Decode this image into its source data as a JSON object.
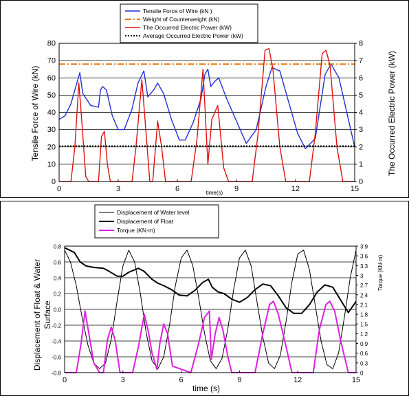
{
  "chart_data": [
    {
      "type": "line",
      "xlabel": "time(s)",
      "ylabel": "Tensile Force of Wire (kN)",
      "y2label": "The Occurred Electric Power (kW)",
      "xlim": [
        0,
        15
      ],
      "ylim": [
        0,
        80
      ],
      "y2lim": [
        0,
        8
      ],
      "x_ticks": [
        0,
        3,
        6,
        9,
        12,
        15
      ],
      "y_ticks": [
        0,
        10,
        20,
        30,
        40,
        50,
        60,
        70,
        80
      ],
      "y2_ticks": [
        0,
        1,
        2,
        3,
        4,
        5,
        6,
        7,
        8
      ],
      "grid": "horizontal",
      "legend_position": "top-center",
      "legend": [
        "Tensile Force of Wire (kN )",
        "Weight of Counterweight (kN)",
        "The Occurred Electric Power (kW)",
        "Average Occurred Electric Power (kW)"
      ],
      "series": [
        {
          "name": "Tensile Force of Wire (kN )",
          "axis": "left",
          "color": "#1f2fd6",
          "style": "solid",
          "x": [
            0,
            0.3,
            0.6,
            0.9,
            1.05,
            1.2,
            1.6,
            2.0,
            2.1,
            2.2,
            2.4,
            2.7,
            3.0,
            3.3,
            3.7,
            4.0,
            4.3,
            4.5,
            4.8,
            5.0,
            5.3,
            5.7,
            6.1,
            6.4,
            6.8,
            7.2,
            7.4,
            7.55,
            7.7,
            7.9,
            8.1,
            8.5,
            9.0,
            9.5,
            10.0,
            10.5,
            10.8,
            11.2,
            11.6,
            12.1,
            12.5,
            13.0,
            13.5,
            13.8,
            14.2,
            14.6,
            15.0
          ],
          "y": [
            36,
            38,
            45,
            57,
            63,
            51,
            44,
            43,
            53,
            55,
            53,
            38,
            30,
            30,
            42,
            57,
            64,
            49,
            53,
            57,
            51,
            36,
            24,
            24,
            34,
            48,
            62,
            65,
            55,
            58,
            60,
            48,
            35,
            22,
            30,
            55,
            66,
            64,
            48,
            28,
            19,
            25,
            62,
            68,
            60,
            40,
            20
          ]
        },
        {
          "name": "Weight of Counterweight (kN)",
          "axis": "left",
          "color": "#e8780e",
          "style": "dashdot",
          "x": [
            0,
            15
          ],
          "y": [
            68,
            68
          ]
        },
        {
          "name": "The Occurred Electric Power (kW)",
          "axis": "right",
          "color": "#e01010",
          "style": "solid",
          "x": [
            0,
            0.6,
            0.8,
            1.0,
            1.15,
            1.35,
            1.5,
            2.0,
            2.15,
            2.3,
            2.45,
            2.6,
            3.7,
            3.9,
            4.2,
            4.4,
            4.6,
            4.75,
            5.0,
            5.2,
            5.4,
            6.7,
            7.0,
            7.3,
            7.55,
            7.75,
            8.05,
            8.35,
            8.6,
            9.8,
            10.1,
            10.45,
            10.65,
            10.85,
            11.2,
            11.5,
            12.7,
            13.0,
            13.35,
            13.55,
            13.75,
            14.1,
            14.4,
            15.0
          ],
          "y": [
            0,
            0,
            2.0,
            5.7,
            3.5,
            0.3,
            0,
            0,
            2.6,
            2.9,
            1.0,
            0,
            0,
            2.0,
            5.9,
            3.0,
            0,
            0,
            3.5,
            2.0,
            0,
            0,
            2.5,
            6.5,
            1.0,
            3.6,
            4.4,
            0.8,
            0,
            0,
            2.8,
            7.6,
            7.7,
            6.5,
            2.0,
            0,
            0,
            2.8,
            7.4,
            7.6,
            6.7,
            2.0,
            0,
            0
          ]
        },
        {
          "name": "Average Occurred Electric Power (kW)",
          "axis": "right",
          "color": "#000000",
          "style": "dotted",
          "x": [
            0,
            15
          ],
          "y": [
            2.05,
            2.05
          ]
        }
      ]
    },
    {
      "type": "line",
      "xlabel": "time (s)",
      "ylabel": "Displacement of Float & Water Surface",
      "y2label": "Torque (KN·m)",
      "xlim": [
        0,
        15
      ],
      "ylim": [
        -0.8,
        0.8
      ],
      "y2lim": [
        0,
        3.9
      ],
      "x_ticks": [
        0,
        3,
        6,
        9,
        12,
        15
      ],
      "y_ticks": [
        -0.8,
        -0.6,
        -0.4,
        -0.2,
        0.0,
        0.2,
        0.4,
        0.6,
        0.8
      ],
      "y_tick_labels": [
        "-0.8",
        "-0.6",
        "-0.4",
        "-0.2",
        "0.0",
        "0.2",
        "0.4",
        "0.6",
        "0.8"
      ],
      "y2_ticks": [
        0,
        0.3,
        0.6,
        0.9,
        1.2,
        1.5,
        1.8,
        2.1,
        2.4,
        2.7,
        3,
        3.3,
        3.6,
        3.9
      ],
      "grid": "horizontal",
      "legend_position": "top-left",
      "legend": [
        "Displacement of Water level",
        "Displacement of Float",
        "Torque (KN·m)"
      ],
      "series": [
        {
          "name": "Displacement of Water level",
          "axis": "left",
          "color": "#000000",
          "style": "thin",
          "x": [
            0,
            0.3,
            0.6,
            0.9,
            1.2,
            1.5,
            1.8,
            2.1,
            2.4,
            2.7,
            3.0,
            3.3,
            3.6,
            3.9,
            4.2,
            4.5,
            4.8,
            5.1,
            5.4,
            5.7,
            6.0,
            6.3,
            6.6,
            6.9,
            7.2,
            7.5,
            7.8,
            8.1,
            8.4,
            8.7,
            9.0,
            9.3,
            9.6,
            9.9,
            10.2,
            10.5,
            10.8,
            11.1,
            11.4,
            11.7,
            12.0,
            12.3,
            12.6,
            12.9,
            13.2,
            13.5,
            13.8,
            14.1,
            14.4,
            14.7,
            15.0
          ],
          "y": [
            0.75,
            0.6,
            0.3,
            -0.1,
            -0.45,
            -0.68,
            -0.75,
            -0.68,
            -0.38,
            0.1,
            0.55,
            0.75,
            0.6,
            0.2,
            -0.3,
            -0.65,
            -0.75,
            -0.6,
            -0.2,
            0.3,
            0.65,
            0.75,
            0.55,
            0.15,
            -0.3,
            -0.65,
            -0.75,
            -0.62,
            -0.25,
            0.25,
            0.65,
            0.75,
            0.55,
            0.1,
            -0.35,
            -0.68,
            -0.75,
            -0.58,
            -0.15,
            0.35,
            0.7,
            0.75,
            0.5,
            0.05,
            -0.4,
            -0.7,
            -0.75,
            -0.55,
            -0.1,
            0.4,
            0.75
          ]
        },
        {
          "name": "Displacement of Float",
          "axis": "left",
          "color": "#000000",
          "style": "thick",
          "x": [
            0,
            0.5,
            0.8,
            1.1,
            1.5,
            2.0,
            2.3,
            2.7,
            3.0,
            3.3,
            3.8,
            4.1,
            4.5,
            4.8,
            5.1,
            5.5,
            5.9,
            6.3,
            6.7,
            7.1,
            7.4,
            7.6,
            7.9,
            8.2,
            8.6,
            9.0,
            9.4,
            9.8,
            10.2,
            10.6,
            11.0,
            11.4,
            11.8,
            12.2,
            12.6,
            13.0,
            13.4,
            13.8,
            14.2,
            14.6,
            15.0
          ],
          "y": [
            0.78,
            0.72,
            0.6,
            0.55,
            0.53,
            0.52,
            0.48,
            0.42,
            0.42,
            0.47,
            0.52,
            0.48,
            0.38,
            0.33,
            0.3,
            0.25,
            0.18,
            0.17,
            0.24,
            0.34,
            0.38,
            0.28,
            0.22,
            0.2,
            0.13,
            0.09,
            0.15,
            0.25,
            0.32,
            0.3,
            0.17,
            0.02,
            -0.05,
            -0.05,
            0.06,
            0.22,
            0.31,
            0.28,
            0.12,
            -0.04,
            0.1
          ]
        },
        {
          "name": "Torque (KN·m)",
          "axis": "right",
          "color": "#e01ee0",
          "style": "thick",
          "x": [
            0,
            0.6,
            0.85,
            1.05,
            1.25,
            1.5,
            1.8,
            2.0,
            2.2,
            2.4,
            2.6,
            2.85,
            3.5,
            3.8,
            4.1,
            4.3,
            4.5,
            4.75,
            4.9,
            5.1,
            5.3,
            5.55,
            6.5,
            6.9,
            7.2,
            7.45,
            7.55,
            7.75,
            7.95,
            8.15,
            8.4,
            8.6,
            9.8,
            10.2,
            10.55,
            10.75,
            11.0,
            11.4,
            11.7,
            12.8,
            13.1,
            13.45,
            13.65,
            13.9,
            14.2,
            14.6,
            15.0
          ],
          "y": [
            0,
            0,
            0.9,
            1.9,
            1.2,
            0.3,
            0,
            0,
            1.0,
            1.4,
            1.0,
            0,
            0,
            0.8,
            1.8,
            1.3,
            0.6,
            0.1,
            0.9,
            1.5,
            1.2,
            0.2,
            0,
            0.9,
            1.7,
            1.9,
            0.4,
            1.2,
            1.7,
            1.3,
            0.5,
            0,
            0,
            1.2,
            2.1,
            2.2,
            1.8,
            0.8,
            0,
            0,
            1.3,
            2.1,
            2.2,
            1.9,
            1.0,
            0,
            0
          ]
        }
      ]
    }
  ]
}
